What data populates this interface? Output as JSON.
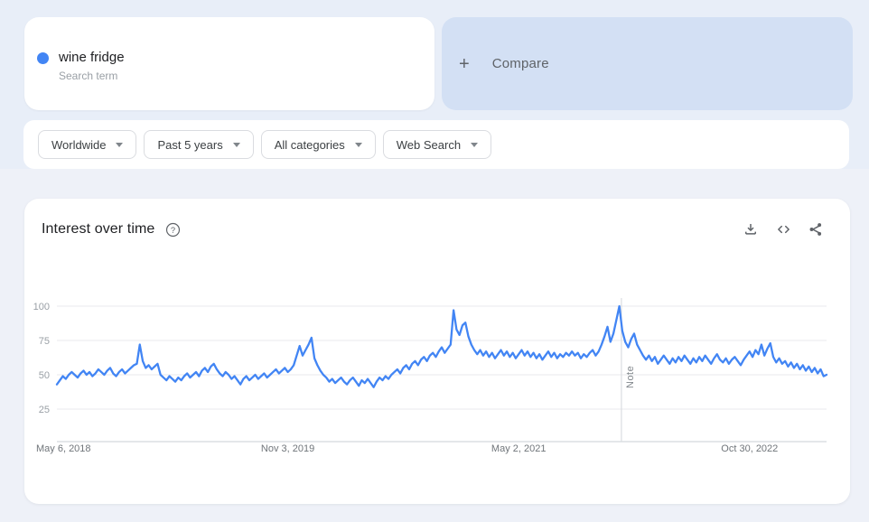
{
  "page": {
    "bg_top_color": "#e8eef8",
    "bg_bottom_color": "#eef1f8"
  },
  "search_card": {
    "term": "wine fridge",
    "type_label": "Search term",
    "dot_color": "#4285f4"
  },
  "compare_card": {
    "plus": "+",
    "label": "Compare",
    "bg_color": "#d3e0f4"
  },
  "filters": [
    {
      "label": "Worldwide"
    },
    {
      "label": "Past 5 years"
    },
    {
      "label": "All categories"
    },
    {
      "label": "Web Search"
    }
  ],
  "chart_card": {
    "title": "Interest over time",
    "help_icon": "help-icon",
    "action_icons": [
      "download-icon",
      "embed-code-icon",
      "share-icon"
    ]
  },
  "chart_data": {
    "type": "line",
    "title": "Interest over time",
    "series_name": "wine fridge",
    "line_color": "#4285f4",
    "grid": true,
    "ylim": [
      0,
      100
    ],
    "y_ticks": [
      25,
      50,
      75,
      100
    ],
    "x_tick_labels": [
      "May 6, 2018",
      "Nov 3, 2019",
      "May 2, 2021",
      "Oct 30, 2022"
    ],
    "x_tick_week_indices": [
      0,
      78,
      156,
      234
    ],
    "note_label": "Note",
    "note_week_index": 190.7,
    "values": [
      43,
      46,
      49,
      47,
      50,
      52,
      50,
      48,
      51,
      53,
      50,
      52,
      49,
      51,
      54,
      52,
      50,
      53,
      55,
      51,
      49,
      52,
      54,
      51,
      53,
      55,
      57,
      58,
      72,
      60,
      55,
      57,
      54,
      56,
      58,
      50,
      48,
      46,
      49,
      47,
      45,
      48,
      46,
      49,
      51,
      48,
      50,
      52,
      49,
      53,
      55,
      52,
      56,
      58,
      54,
      51,
      49,
      52,
      50,
      47,
      49,
      46,
      43,
      47,
      49,
      46,
      48,
      50,
      47,
      49,
      51,
      48,
      50,
      52,
      54,
      51,
      53,
      55,
      52,
      54,
      57,
      64,
      71,
      64,
      68,
      72,
      77,
      62,
      57,
      53,
      50,
      48,
      45,
      47,
      44,
      46,
      48,
      45,
      43,
      46,
      48,
      45,
      42,
      46,
      44,
      47,
      44,
      41,
      45,
      48,
      46,
      49,
      47,
      50,
      52,
      54,
      51,
      55,
      57,
      54,
      58,
      60,
      57,
      61,
      63,
      60,
      64,
      66,
      63,
      67,
      70,
      66,
      69,
      72,
      97,
      83,
      79,
      86,
      88,
      78,
      72,
      68,
      65,
      68,
      64,
      67,
      63,
      66,
      62,
      65,
      68,
      64,
      67,
      63,
      66,
      62,
      65,
      68,
      64,
      67,
      63,
      66,
      62,
      65,
      61,
      64,
      67,
      63,
      66,
      62,
      65,
      63,
      66,
      64,
      67,
      64,
      66,
      62,
      65,
      63,
      66,
      68,
      64,
      67,
      72,
      78,
      85,
      74,
      80,
      90,
      100,
      82,
      74,
      70,
      76,
      80,
      72,
      68,
      64,
      61,
      64,
      60,
      63,
      58,
      61,
      64,
      61,
      58,
      62,
      59,
      63,
      60,
      64,
      61,
      58,
      62,
      59,
      63,
      60,
      64,
      61,
      58,
      62,
      65,
      61,
      59,
      62,
      58,
      61,
      63,
      60,
      57,
      61,
      64,
      67,
      63,
      68,
      65,
      72,
      64,
      69,
      73,
      63,
      59,
      62,
      58,
      60,
      56,
      59,
      55,
      58,
      54,
      57,
      53,
      56,
      52,
      55,
      51,
      54,
      49,
      50
    ]
  }
}
